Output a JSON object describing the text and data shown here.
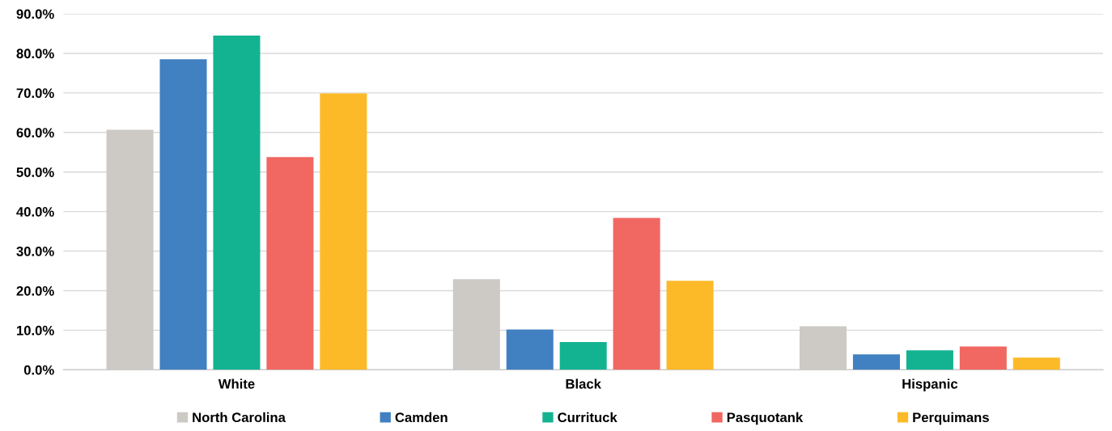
{
  "chart_data": {
    "type": "bar",
    "categories": [
      "White",
      "Black",
      "Hispanic"
    ],
    "series": [
      {
        "name": "North Carolina",
        "color": "#cdc9c5",
        "values": [
          60.7,
          22.9,
          11.0
        ]
      },
      {
        "name": "Camden",
        "color": "#4180c1",
        "values": [
          78.5,
          10.2,
          3.9
        ]
      },
      {
        "name": "Currituck",
        "color": "#13b391",
        "values": [
          84.5,
          7.0,
          4.9
        ]
      },
      {
        "name": "Pasquotank",
        "color": "#f16762",
        "values": [
          53.8,
          38.4,
          5.9
        ]
      },
      {
        "name": "Perquimans",
        "color": "#fdba28",
        "values": [
          69.9,
          22.5,
          3.1
        ]
      }
    ],
    "ylim": [
      0,
      90
    ],
    "yticks": [
      {
        "value": 0,
        "label": "0.0%"
      },
      {
        "value": 10,
        "label": "10.0%"
      },
      {
        "value": 20,
        "label": "20.0%"
      },
      {
        "value": 30,
        "label": "30.0%"
      },
      {
        "value": 40,
        "label": "40.0%"
      },
      {
        "value": 50,
        "label": "50.0%"
      },
      {
        "value": 60,
        "label": "60.0%"
      },
      {
        "value": 70,
        "label": "70.0%"
      },
      {
        "value": 80,
        "label": "80.0%"
      },
      {
        "value": 90,
        "label": "90.0%"
      }
    ],
    "grid": "y",
    "legend": "bottom"
  }
}
